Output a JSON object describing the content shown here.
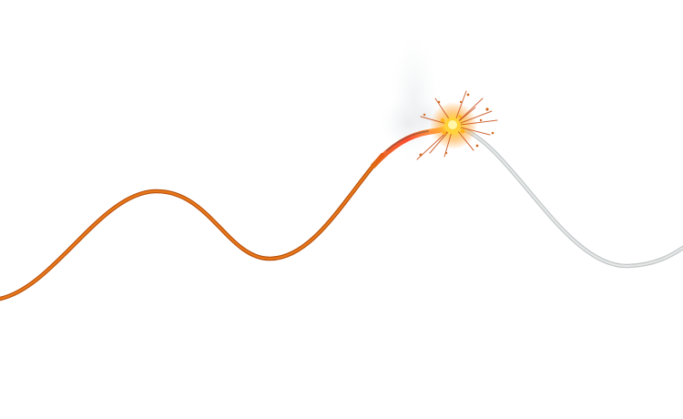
{
  "scene": {
    "description_free": true,
    "colors": {
      "background": "#ffffff",
      "burned_fuse": "#e06a12",
      "burned_fuse_dark": "#b8500c",
      "unburned_fuse": "#d9dcdc",
      "unburned_fuse_edge": "#c4c8c8",
      "spark_core": "#fff6a8",
      "spark_glow": "#ffb21a",
      "spark_ember": "#d2691e",
      "smoke": "#e4e7ea"
    },
    "icons": {
      "spark": "spark-icon",
      "smoke": "smoke-icon"
    },
    "burn_progress": 0.66
  }
}
